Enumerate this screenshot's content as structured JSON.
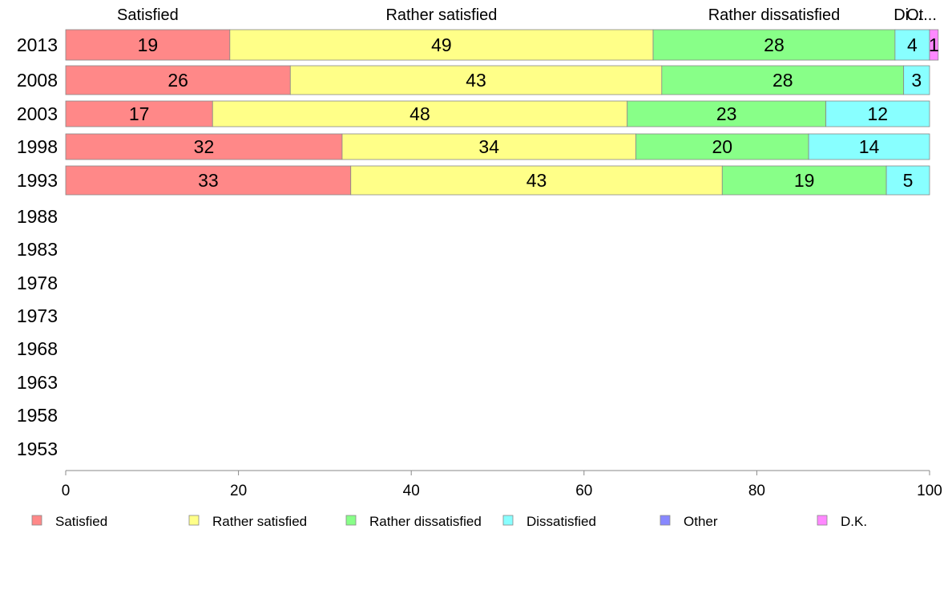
{
  "chart_data": {
    "type": "bar",
    "orientation": "horizontal",
    "stacked": true,
    "categories": [
      "2013",
      "2008",
      "2003",
      "1998",
      "1993",
      "1988",
      "1983",
      "1978",
      "1973",
      "1968",
      "1963",
      "1958",
      "1953"
    ],
    "series": [
      {
        "name": "Satisfied",
        "color": "#ff8888",
        "values": [
          19,
          26,
          17,
          32,
          33,
          null,
          null,
          null,
          null,
          null,
          null,
          null,
          null
        ]
      },
      {
        "name": "Rather satisfied",
        "color": "#ffff88",
        "values": [
          49,
          43,
          48,
          34,
          43,
          null,
          null,
          null,
          null,
          null,
          null,
          null,
          null
        ]
      },
      {
        "name": "Rather dissatisfied",
        "color": "#88ff88",
        "values": [
          28,
          28,
          23,
          20,
          19,
          null,
          null,
          null,
          null,
          null,
          null,
          null,
          null
        ]
      },
      {
        "name": "Dissatisfied",
        "color": "#88ffff",
        "values": [
          4,
          3,
          12,
          14,
          5,
          null,
          null,
          null,
          null,
          null,
          null,
          null,
          null
        ]
      },
      {
        "name": "Other",
        "color": "#8888ff",
        "values": [
          0,
          0,
          0,
          0,
          0,
          null,
          null,
          null,
          null,
          null,
          null,
          null,
          null
        ]
      },
      {
        "name": "D.K.",
        "color": "#ff88ff",
        "values": [
          1,
          0,
          0,
          0,
          0,
          null,
          null,
          null,
          null,
          null,
          null,
          null,
          null
        ]
      }
    ],
    "top_labels": [
      "Satisfied",
      "Rather satisfied",
      "Rather dissatisfied",
      "Di...",
      "Ot..."
    ],
    "xlim": [
      0,
      100
    ],
    "x_ticks": [
      0,
      20,
      40,
      60,
      80,
      100
    ],
    "grid": false,
    "legend_position": "bottom"
  }
}
